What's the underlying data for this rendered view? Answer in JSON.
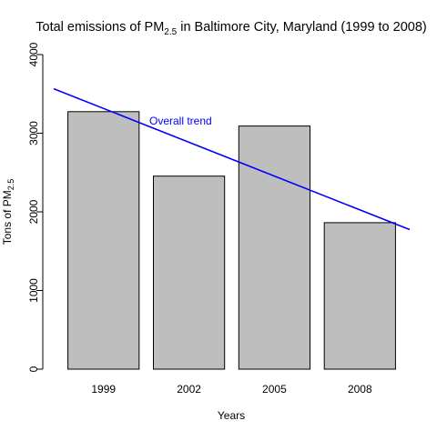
{
  "chart_data": {
    "type": "bar",
    "title": {
      "prefix": "Total emissions of PM",
      "subscript": "2.5",
      "suffix": " in Baltimore City, Maryland (1999 to 2008)"
    },
    "xlabel": "Years",
    "ylabel": {
      "prefix": "Tons of PM",
      "subscript": "2.5"
    },
    "categories": [
      "1999",
      "2002",
      "2005",
      "2008"
    ],
    "values": [
      3274,
      2454,
      3091,
      1862
    ],
    "ylim": [
      0,
      4000
    ],
    "yticks": [
      "0",
      "1000",
      "2000",
      "3000",
      "4000"
    ],
    "grid": false,
    "bar_color": "#bebebe",
    "trend": {
      "label": "Overall trend",
      "color": "#0000ff",
      "start_value": 3565,
      "end_value": 1775
    }
  }
}
